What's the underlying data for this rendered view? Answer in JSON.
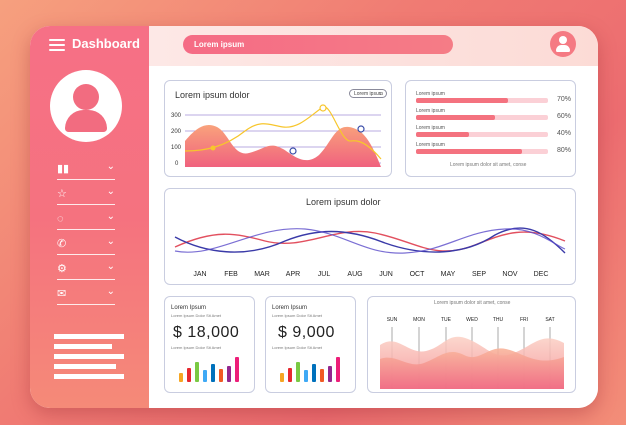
{
  "app": {
    "title": "Dashboard"
  },
  "search": {
    "placeholder": "Lorem ipsum"
  },
  "sidebar": {
    "items": [
      {
        "icon": "bar-chart-icon",
        "glyph": "▮▮"
      },
      {
        "icon": "star-icon",
        "glyph": "☆"
      },
      {
        "icon": "chat-icon",
        "glyph": "◌"
      },
      {
        "icon": "phone-icon",
        "glyph": "✆"
      },
      {
        "icon": "settings-icon",
        "glyph": "⚙"
      },
      {
        "icon": "mail-icon",
        "glyph": "✉"
      }
    ],
    "chevron": "⌄"
  },
  "area_card": {
    "title": "Lorem ipsum dolor",
    "dropdown": "Lorem ipsum",
    "y_ticks": [
      "300",
      "200",
      "100",
      "0"
    ]
  },
  "progress_card": {
    "items": [
      {
        "label": "Lorem ipsum",
        "value": 0.7,
        "text": "70%"
      },
      {
        "label": "Lorem ipsum",
        "value": 0.6,
        "text": "60%"
      },
      {
        "label": "Lorem ipsum",
        "value": 0.4,
        "text": "40%"
      },
      {
        "label": "Lorem ipsum",
        "value": 0.8,
        "text": "80%"
      }
    ],
    "caption": "Lorem ipsum dolor sit amet, conse"
  },
  "wave_card": {
    "title": "Lorem ipsum dolor",
    "months": [
      "JAN",
      "FEB",
      "MAR",
      "APR",
      "JUL",
      "AUG",
      "JUN",
      "OCT",
      "MAY",
      "SEP",
      "NOV",
      "DEC"
    ]
  },
  "stat1": {
    "title": "Lorem Ipsum",
    "sub": "Lorem Ipsum Dolor Sit Amet",
    "value": "$ 18,000",
    "sub2": "Lorem Ipsum Dolor Sit Amet",
    "bars": [
      0.35,
      0.55,
      0.75,
      0.45,
      0.7,
      0.5,
      0.6,
      0.95
    ]
  },
  "stat2": {
    "title": "Lorem Ipsum",
    "sub": "Lorem Ipsum Dolor Sit Amet",
    "value": "$ 9,000",
    "sub2": "Lorem Ipsum Dolor Sit Amet",
    "bars": [
      0.35,
      0.55,
      0.75,
      0.45,
      0.7,
      0.5,
      0.6,
      0.95
    ]
  },
  "week_card": {
    "caption": "Lorem ipsum dolor sit amet, conse",
    "days": [
      "SUN",
      "MON",
      "TUE",
      "WED",
      "THU",
      "FRI",
      "SAT"
    ]
  },
  "colors": {
    "accent": "#f4727f",
    "bar_colors": [
      "#f6a623",
      "#e6282f",
      "#7ac943",
      "#3fa9f5",
      "#0071bc",
      "#f15a24",
      "#93278f",
      "#ed1e79"
    ]
  }
}
